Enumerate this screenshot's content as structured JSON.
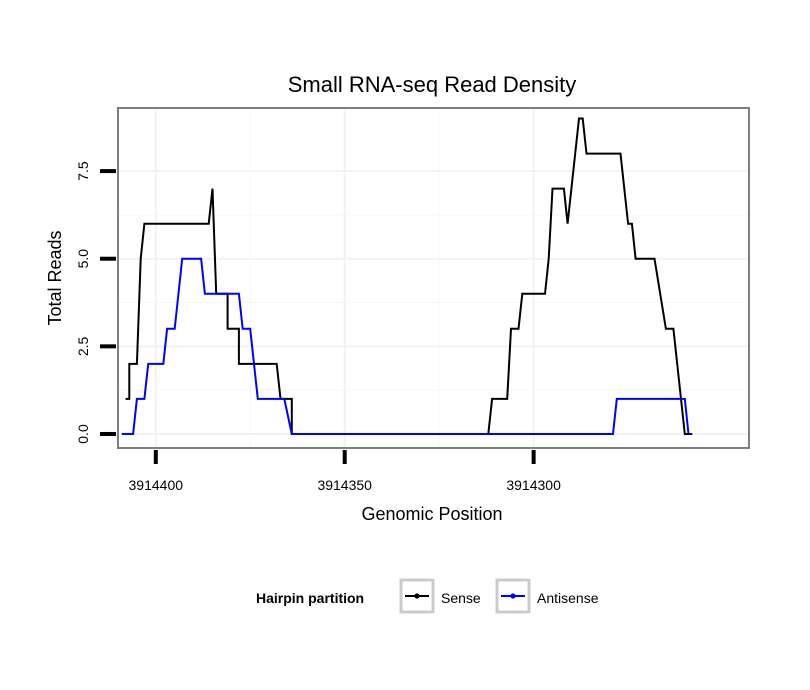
{
  "chart_data": {
    "type": "line",
    "title": "Small RNA-seq Read Density",
    "xlabel": "Genomic Position",
    "ylabel": "Total Reads",
    "x_reversed": true,
    "xlim": [
      3914410,
      3914243
    ],
    "ylim": [
      -0.4,
      9.3
    ],
    "x_ticks": [
      3914400,
      3914350,
      3914300
    ],
    "x_tick_labels": [
      "3914400",
      "3914350",
      "3914300"
    ],
    "y_ticks": [
      0,
      2.5,
      5,
      7.5
    ],
    "y_tick_labels": [
      "0.0",
      "2.5",
      "5.0",
      "7.5"
    ],
    "grid": true,
    "legend": {
      "title": "Hairpin partition",
      "position": "bottom"
    },
    "series": [
      {
        "name": "Sense",
        "color": "#000000",
        "points": [
          [
            3914408,
            1
          ],
          [
            3914407,
            1
          ],
          [
            3914407,
            2
          ],
          [
            3914405,
            2
          ],
          [
            3914404,
            5
          ],
          [
            3914403,
            6
          ],
          [
            3914395,
            6
          ],
          [
            3914390,
            6
          ],
          [
            3914386,
            6
          ],
          [
            3914385,
            7
          ],
          [
            3914384,
            4
          ],
          [
            3914381,
            4
          ],
          [
            3914381,
            3
          ],
          [
            3914378,
            3
          ],
          [
            3914378,
            2
          ],
          [
            3914368,
            2
          ],
          [
            3914367,
            1
          ],
          [
            3914364,
            1
          ],
          [
            3914364,
            0
          ],
          [
            3914312,
            0
          ],
          [
            3914311,
            1
          ],
          [
            3914307,
            1
          ],
          [
            3914306,
            3
          ],
          [
            3914304,
            3
          ],
          [
            3914303,
            4
          ],
          [
            3914297,
            4
          ],
          [
            3914296,
            5
          ],
          [
            3914295,
            7
          ],
          [
            3914292,
            7
          ],
          [
            3914291,
            6
          ],
          [
            3914290,
            7
          ],
          [
            3914288,
            9
          ],
          [
            3914287,
            9
          ],
          [
            3914286,
            8
          ],
          [
            3914277,
            8
          ],
          [
            3914275,
            6
          ],
          [
            3914274,
            6
          ],
          [
            3914273,
            5
          ],
          [
            3914268,
            5
          ],
          [
            3914265,
            3
          ],
          [
            3914263,
            3
          ],
          [
            3914260,
            0
          ],
          [
            3914258,
            0
          ]
        ]
      },
      {
        "name": "Antisense",
        "color": "#0000ff",
        "points": [
          [
            3914409,
            0
          ],
          [
            3914406,
            0
          ],
          [
            3914405,
            1
          ],
          [
            3914403,
            1
          ],
          [
            3914402,
            2
          ],
          [
            3914398,
            2
          ],
          [
            3914397,
            3
          ],
          [
            3914395,
            3
          ],
          [
            3914393,
            5
          ],
          [
            3914388,
            5
          ],
          [
            3914387,
            4
          ],
          [
            3914378,
            4
          ],
          [
            3914377,
            3
          ],
          [
            3914375,
            3
          ],
          [
            3914373,
            1
          ],
          [
            3914366,
            1
          ],
          [
            3914364,
            0
          ],
          [
            3914279,
            0
          ],
          [
            3914278,
            1
          ],
          [
            3914260,
            1
          ],
          [
            3914259,
            0
          ]
        ]
      }
    ]
  }
}
